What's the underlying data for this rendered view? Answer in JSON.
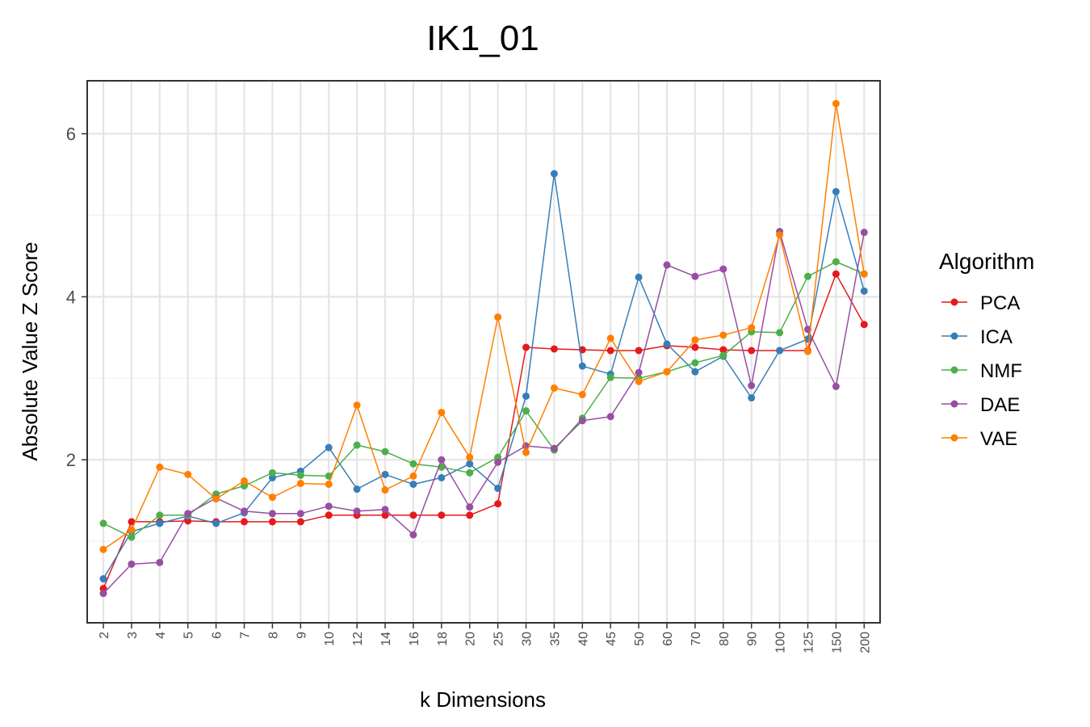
{
  "chart_data": {
    "type": "line",
    "title": "IK1_01",
    "xlabel": "k Dimensions",
    "ylabel": "Absolute Value Z Score",
    "ylim": [
      0.0,
      6.65
    ],
    "yticks": [
      2,
      4,
      6
    ],
    "grid": true,
    "legend": {
      "title": "Algorithm",
      "placement": "right"
    },
    "categories": [
      "2",
      "3",
      "4",
      "5",
      "6",
      "7",
      "8",
      "9",
      "10",
      "12",
      "14",
      "16",
      "18",
      "20",
      "25",
      "30",
      "35",
      "40",
      "45",
      "50",
      "60",
      "70",
      "80",
      "90",
      "100",
      "125",
      "150",
      "200"
    ],
    "series": [
      {
        "name": "PCA",
        "color": "#e41a1c",
        "values": [
          0.42,
          1.24,
          1.24,
          1.25,
          1.24,
          1.24,
          1.24,
          1.24,
          1.32,
          1.32,
          1.32,
          1.32,
          1.32,
          1.32,
          1.46,
          3.38,
          3.36,
          3.35,
          3.34,
          3.34,
          3.4,
          3.38,
          3.35,
          3.34,
          3.34,
          3.34,
          4.28,
          3.66
        ]
      },
      {
        "name": "ICA",
        "color": "#377eb8",
        "values": [
          0.54,
          1.12,
          1.22,
          1.31,
          1.22,
          1.35,
          1.78,
          1.86,
          2.15,
          1.64,
          1.82,
          1.7,
          1.78,
          1.95,
          1.65,
          2.78,
          5.51,
          3.15,
          3.05,
          4.24,
          3.42,
          3.08,
          3.27,
          2.76,
          3.34,
          3.48,
          5.29,
          4.07
        ]
      },
      {
        "name": "NMF",
        "color": "#4daf4a",
        "values": [
          1.22,
          1.05,
          1.32,
          1.32,
          1.58,
          1.68,
          1.84,
          1.81,
          1.8,
          2.18,
          2.1,
          1.95,
          1.91,
          1.84,
          2.03,
          2.6,
          2.12,
          2.51,
          3.01,
          3.0,
          3.08,
          3.19,
          3.28,
          3.57,
          3.56,
          4.25,
          4.43,
          4.28
        ]
      },
      {
        "name": "DAE",
        "color": "#984ea3",
        "values": [
          0.36,
          0.72,
          0.74,
          1.34,
          1.53,
          1.37,
          1.34,
          1.34,
          1.43,
          1.37,
          1.39,
          1.08,
          2.0,
          1.42,
          1.97,
          2.17,
          2.14,
          2.48,
          2.53,
          3.07,
          4.39,
          4.25,
          4.34,
          2.91,
          4.8,
          3.6,
          2.9,
          4.79
        ]
      },
      {
        "name": "VAE",
        "color": "#ff7f00",
        "values": [
          0.9,
          1.14,
          1.91,
          1.82,
          1.52,
          1.74,
          1.54,
          1.71,
          1.7,
          2.67,
          1.63,
          1.8,
          2.58,
          2.03,
          3.75,
          2.09,
          2.88,
          2.8,
          3.49,
          2.96,
          3.08,
          3.47,
          3.53,
          3.62,
          4.76,
          3.33,
          6.37,
          4.28
        ]
      }
    ]
  }
}
